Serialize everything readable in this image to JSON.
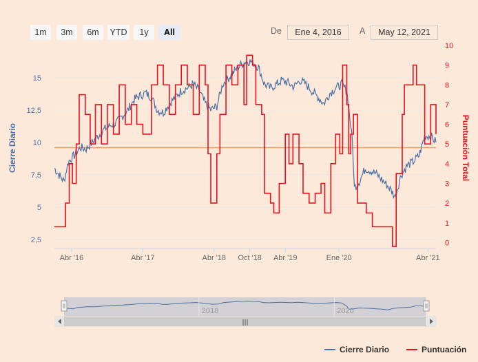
{
  "range_selector": {
    "buttons": [
      {
        "label": "1m",
        "active": false
      },
      {
        "label": "3m",
        "active": false
      },
      {
        "label": "6m",
        "active": false
      },
      {
        "label": "YTD",
        "active": false
      },
      {
        "label": "1y",
        "active": false
      },
      {
        "label": "All",
        "active": true
      }
    ],
    "from_label": "De",
    "from_value": "Ene 4, 2016",
    "to_label": "A",
    "to_value": "May 12, 2021"
  },
  "colors": {
    "background": "#fde9d9",
    "cierre": "#4a6fa5",
    "puntuacion": "#e8101c",
    "plot_line": "#e8a06a",
    "navigator_mask": "#c8cad3"
  },
  "chart_data": {
    "type": "line",
    "x_axis": {
      "type": "datetime",
      "range": [
        "2016-01-04",
        "2021-05-12"
      ],
      "tick_labels": [
        "Abr '16",
        "Abr '17",
        "Abr '18",
        "Oct '18",
        "Abr '19",
        "Ene '20",
        "Abr '21"
      ]
    },
    "y_axis_left": {
      "label": "Cierre Diario",
      "range": [
        1.8,
        17.5
      ],
      "tick_labels": [
        "2,5",
        "5",
        "7,5",
        "10",
        "12,5",
        "15"
      ]
    },
    "y_axis_right": {
      "label": "Puntuación Total",
      "range": [
        -0.3,
        10
      ],
      "tick_labels": [
        "0",
        "1",
        "2",
        "3",
        "4",
        "5",
        "6",
        "7",
        "8",
        "9",
        "10"
      ]
    },
    "plot_line": {
      "axis": "left",
      "value": 9.6
    },
    "series": [
      {
        "name": "Cierre Diario",
        "axis": "left",
        "points": [
          [
            "2016-01-04",
            8.0
          ],
          [
            "2016-02-01",
            7.4
          ],
          [
            "2016-02-22",
            7.0
          ],
          [
            "2016-03-15",
            8.5
          ],
          [
            "2016-04-15",
            9.0
          ],
          [
            "2016-05-15",
            9.6
          ],
          [
            "2016-06-15",
            9.5
          ],
          [
            "2016-07-15",
            10.0
          ],
          [
            "2016-08-15",
            10.5
          ],
          [
            "2016-09-15",
            11.0
          ],
          [
            "2016-10-15",
            11.3
          ],
          [
            "2016-11-15",
            11.5
          ],
          [
            "2016-12-15",
            12.0
          ],
          [
            "2017-01-15",
            12.5
          ],
          [
            "2017-02-15",
            13.3
          ],
          [
            "2017-03-15",
            13.6
          ],
          [
            "2017-04-15",
            13.8
          ],
          [
            "2017-05-15",
            13.5
          ],
          [
            "2017-06-15",
            12.5
          ],
          [
            "2017-07-15",
            12.3
          ],
          [
            "2017-08-15",
            13.0
          ],
          [
            "2017-09-15",
            13.5
          ],
          [
            "2017-10-15",
            14.0
          ],
          [
            "2017-11-15",
            14.2
          ],
          [
            "2017-12-15",
            14.5
          ],
          [
            "2018-01-15",
            14.0
          ],
          [
            "2018-02-15",
            13.0
          ],
          [
            "2018-03-15",
            12.5
          ],
          [
            "2018-04-15",
            12.8
          ],
          [
            "2018-05-15",
            14.5
          ],
          [
            "2018-06-15",
            15.0
          ],
          [
            "2018-07-15",
            15.5
          ],
          [
            "2018-08-15",
            16.0
          ],
          [
            "2018-09-15",
            16.3
          ],
          [
            "2018-10-15",
            16.2
          ],
          [
            "2018-11-15",
            15.8
          ],
          [
            "2018-12-15",
            14.5
          ],
          [
            "2019-01-15",
            14.2
          ],
          [
            "2019-02-15",
            14.5
          ],
          [
            "2019-03-15",
            14.8
          ],
          [
            "2019-04-15",
            14.6
          ],
          [
            "2019-05-15",
            14.3
          ],
          [
            "2019-06-15",
            14.8
          ],
          [
            "2019-07-15",
            14.5
          ],
          [
            "2019-08-15",
            14.0
          ],
          [
            "2019-09-15",
            13.5
          ],
          [
            "2019-10-15",
            13.0
          ],
          [
            "2019-11-15",
            13.8
          ],
          [
            "2019-12-15",
            14.2
          ],
          [
            "2020-01-15",
            14.5
          ],
          [
            "2020-02-10",
            14.0
          ],
          [
            "2020-02-25",
            12.0
          ],
          [
            "2020-03-10",
            10.0
          ],
          [
            "2020-03-20",
            6.5
          ],
          [
            "2020-04-15",
            7.0
          ],
          [
            "2020-05-15",
            8.0
          ],
          [
            "2020-06-15",
            7.8
          ],
          [
            "2020-07-15",
            7.5
          ],
          [
            "2020-08-15",
            7.0
          ],
          [
            "2020-09-15",
            6.5
          ],
          [
            "2020-10-15",
            5.8
          ],
          [
            "2020-11-15",
            7.5
          ],
          [
            "2020-12-15",
            8.2
          ],
          [
            "2021-01-15",
            8.5
          ],
          [
            "2021-02-15",
            9.0
          ],
          [
            "2021-03-15",
            10.5
          ],
          [
            "2021-04-15",
            10.5
          ],
          [
            "2021-05-12",
            10.0
          ]
        ]
      },
      {
        "name": "Puntuación",
        "axis": "right",
        "step": true,
        "points": [
          [
            "2016-01-04",
            0.8
          ],
          [
            "2016-03-01",
            2.0
          ],
          [
            "2016-03-20",
            4.0
          ],
          [
            "2016-04-05",
            3.0
          ],
          [
            "2016-04-25",
            5.0
          ],
          [
            "2016-05-10",
            7.5
          ],
          [
            "2016-06-10",
            6.5
          ],
          [
            "2016-07-05",
            5.0
          ],
          [
            "2016-08-01",
            7.0
          ],
          [
            "2016-09-01",
            5.0
          ],
          [
            "2016-10-01",
            7.0
          ],
          [
            "2016-11-01",
            5.5
          ],
          [
            "2016-12-01",
            8.0
          ],
          [
            "2017-01-01",
            6.0
          ],
          [
            "2017-02-01",
            7.0
          ],
          [
            "2017-03-01",
            6.0
          ],
          [
            "2017-04-01",
            5.5
          ],
          [
            "2017-05-15",
            8.0
          ],
          [
            "2017-06-15",
            9.0
          ],
          [
            "2017-07-15",
            8.0
          ],
          [
            "2017-08-15",
            6.5
          ],
          [
            "2017-09-15",
            8.0
          ],
          [
            "2017-10-15",
            9.0
          ],
          [
            "2017-11-15",
            8.0
          ],
          [
            "2017-12-15",
            6.5
          ],
          [
            "2018-01-15",
            9.0
          ],
          [
            "2018-02-15",
            8.0
          ],
          [
            "2018-03-01",
            4.5
          ],
          [
            "2018-03-15",
            2.0
          ],
          [
            "2018-04-15",
            4.5
          ],
          [
            "2018-05-01",
            6.5
          ],
          [
            "2018-06-01",
            9.0
          ],
          [
            "2018-07-01",
            8.0
          ],
          [
            "2018-08-01",
            9.0
          ],
          [
            "2018-09-01",
            7.0
          ],
          [
            "2018-09-15",
            9.5
          ],
          [
            "2018-10-15",
            9.0
          ],
          [
            "2018-11-01",
            7.0
          ],
          [
            "2018-12-01",
            6.5
          ],
          [
            "2018-12-15",
            2.5
          ],
          [
            "2019-01-15",
            2.0
          ],
          [
            "2019-02-01",
            1.5
          ],
          [
            "2019-03-01",
            3.0
          ],
          [
            "2019-04-01",
            5.5
          ],
          [
            "2019-04-20",
            4.0
          ],
          [
            "2019-05-10",
            5.5
          ],
          [
            "2019-06-10",
            4.0
          ],
          [
            "2019-07-01",
            2.5
          ],
          [
            "2019-08-01",
            2.0
          ],
          [
            "2019-09-01",
            2.5
          ],
          [
            "2019-10-01",
            3.0
          ],
          [
            "2019-10-20",
            1.5
          ],
          [
            "2019-11-20",
            4.0
          ],
          [
            "2019-12-15",
            5.5
          ],
          [
            "2020-01-05",
            4.5
          ],
          [
            "2020-01-20",
            9.0
          ],
          [
            "2020-02-10",
            7.0
          ],
          [
            "2020-02-20",
            4.5
          ],
          [
            "2020-03-01",
            5.5
          ],
          [
            "2020-03-15",
            6.5
          ],
          [
            "2020-04-05",
            2.0
          ],
          [
            "2020-05-01",
            2.0
          ],
          [
            "2020-05-20",
            1.5
          ],
          [
            "2020-06-20",
            0.8
          ],
          [
            "2020-09-15",
            0.8
          ],
          [
            "2020-10-01",
            -0.2
          ],
          [
            "2020-10-20",
            3.5
          ],
          [
            "2020-11-20",
            6.5
          ],
          [
            "2020-12-01",
            8.0
          ],
          [
            "2021-01-15",
            9.0
          ],
          [
            "2021-02-01",
            8.0
          ],
          [
            "2021-03-15",
            5.0
          ],
          [
            "2021-04-15",
            7.0
          ],
          [
            "2021-05-12",
            5.5
          ]
        ]
      }
    ],
    "navigator": {
      "tick_labels": [
        "2018",
        "2020"
      ]
    },
    "legend": {
      "position": "bottom-right",
      "items": [
        "Cierre Diario",
        "Puntuación"
      ]
    }
  }
}
